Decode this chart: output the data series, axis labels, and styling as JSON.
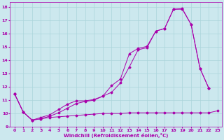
{
  "xlabel": "Windchill (Refroidissement éolien,°C)",
  "bg_color": "#cce8ee",
  "grid_color": "#aad4da",
  "line_color": "#aa00aa",
  "xlim": [
    -0.5,
    23.5
  ],
  "ylim": [
    9,
    18.4
  ],
  "xticks": [
    0,
    1,
    2,
    3,
    4,
    5,
    6,
    7,
    8,
    9,
    10,
    11,
    12,
    13,
    14,
    15,
    16,
    17,
    18,
    19,
    20,
    21,
    22,
    23
  ],
  "yticks": [
    9,
    10,
    11,
    12,
    13,
    14,
    15,
    16,
    17,
    18
  ],
  "series1_x": [
    0,
    1,
    2,
    3,
    4,
    5,
    6,
    7,
    8,
    9,
    10,
    11,
    12,
    13,
    14,
    15,
    16,
    17,
    18,
    19,
    20,
    21,
    22,
    23
  ],
  "series1_y": [
    11.5,
    10.1,
    9.5,
    9.6,
    9.7,
    9.75,
    9.8,
    9.85,
    9.9,
    9.95,
    10.0,
    10.0,
    10.0,
    10.05,
    10.05,
    10.05,
    10.05,
    10.05,
    10.05,
    10.05,
    10.05,
    10.05,
    10.05,
    10.2
  ],
  "series2_x": [
    0,
    1,
    2,
    3,
    4,
    5,
    6,
    7,
    8,
    9,
    10,
    11,
    12,
    13,
    14,
    15,
    16,
    17,
    18,
    19,
    20,
    21,
    22
  ],
  "series2_y": [
    11.5,
    10.1,
    9.5,
    9.6,
    9.8,
    10.05,
    10.4,
    10.75,
    10.9,
    11.0,
    11.3,
    11.6,
    12.3,
    13.5,
    14.8,
    14.95,
    16.2,
    16.4,
    17.85,
    17.85,
    16.7,
    13.4,
    11.9
  ],
  "series3_x": [
    0,
    1,
    2,
    3,
    4,
    5,
    6,
    7,
    8,
    9,
    10,
    11,
    12,
    13,
    14,
    15,
    16,
    17,
    18,
    19,
    20,
    21,
    22
  ],
  "series3_y": [
    11.5,
    10.1,
    9.5,
    9.7,
    9.9,
    10.3,
    10.7,
    10.95,
    10.95,
    11.05,
    11.3,
    12.1,
    12.6,
    14.5,
    14.9,
    15.05,
    16.2,
    16.4,
    17.85,
    17.9,
    16.7,
    13.4,
    11.9
  ]
}
